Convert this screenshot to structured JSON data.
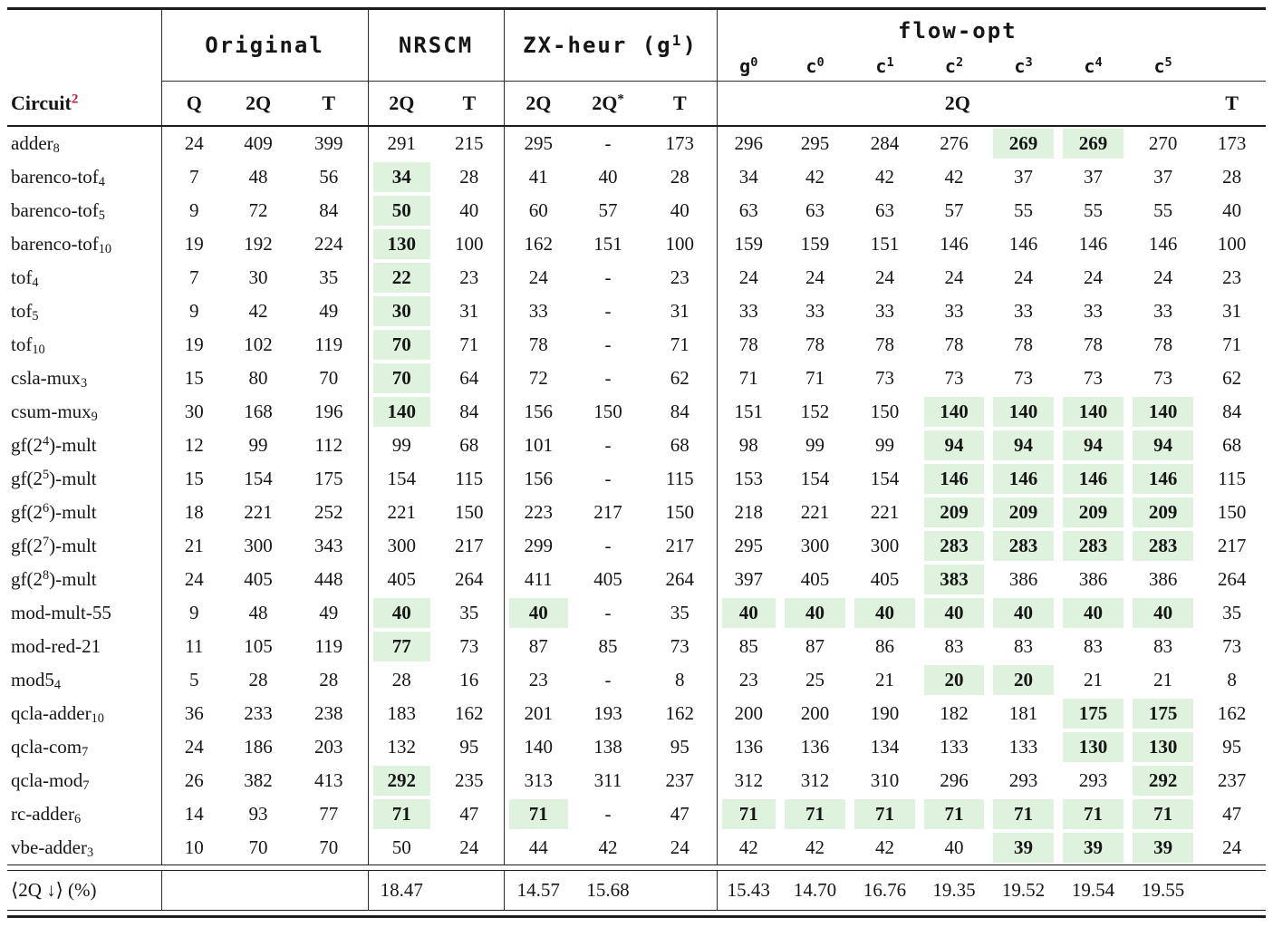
{
  "colors": {
    "highlight_green": "#def2dd",
    "footnote_red": "#c4134e"
  },
  "header": {
    "circuit_label": "Circuit",
    "circuit_footnote": "2",
    "groups": [
      {
        "label": "Original"
      },
      {
        "label": "NRSCM"
      },
      {
        "label": "ZX-heur (g^{1})"
      },
      {
        "label": "flow-opt",
        "subcols": [
          "g^{0}",
          "c^{0}",
          "c^{1}",
          "c^{2}",
          "c^{3}",
          "c^{4}",
          "c^{5}"
        ]
      }
    ],
    "columns": [
      "Q",
      "2Q",
      "T",
      "2Q",
      "T",
      "2Q",
      "2Q^{*}",
      "T"
    ],
    "flow_2q_label": "2Q",
    "flow_t_label": "T"
  },
  "rows": [
    {
      "name": "adder_{8}",
      "cells": [
        {
          "v": "24"
        },
        {
          "v": "409"
        },
        {
          "v": "399"
        },
        {
          "v": "291"
        },
        {
          "v": "215"
        },
        {
          "v": "295"
        },
        {
          "v": "-"
        },
        {
          "v": "173"
        },
        {
          "v": "296"
        },
        {
          "v": "295"
        },
        {
          "v": "284"
        },
        {
          "v": "276"
        },
        {
          "v": "269",
          "hl": true
        },
        {
          "v": "269",
          "hl": true
        },
        {
          "v": "270"
        },
        {
          "v": "173"
        }
      ]
    },
    {
      "name": "barenco-tof_{4}",
      "cells": [
        {
          "v": "7"
        },
        {
          "v": "48"
        },
        {
          "v": "56"
        },
        {
          "v": "34",
          "hl": true
        },
        {
          "v": "28"
        },
        {
          "v": "41"
        },
        {
          "v": "40"
        },
        {
          "v": "28"
        },
        {
          "v": "34"
        },
        {
          "v": "42"
        },
        {
          "v": "42"
        },
        {
          "v": "42"
        },
        {
          "v": "37"
        },
        {
          "v": "37"
        },
        {
          "v": "37"
        },
        {
          "v": "28"
        }
      ]
    },
    {
      "name": "barenco-tof_{5}",
      "cells": [
        {
          "v": "9"
        },
        {
          "v": "72"
        },
        {
          "v": "84"
        },
        {
          "v": "50",
          "hl": true
        },
        {
          "v": "40"
        },
        {
          "v": "60"
        },
        {
          "v": "57"
        },
        {
          "v": "40"
        },
        {
          "v": "63"
        },
        {
          "v": "63"
        },
        {
          "v": "63"
        },
        {
          "v": "57"
        },
        {
          "v": "55"
        },
        {
          "v": "55"
        },
        {
          "v": "55"
        },
        {
          "v": "40"
        }
      ]
    },
    {
      "name": "barenco-tof_{10}",
      "cells": [
        {
          "v": "19"
        },
        {
          "v": "192"
        },
        {
          "v": "224"
        },
        {
          "v": "130",
          "hl": true
        },
        {
          "v": "100"
        },
        {
          "v": "162"
        },
        {
          "v": "151"
        },
        {
          "v": "100"
        },
        {
          "v": "159"
        },
        {
          "v": "159"
        },
        {
          "v": "151"
        },
        {
          "v": "146"
        },
        {
          "v": "146"
        },
        {
          "v": "146"
        },
        {
          "v": "146"
        },
        {
          "v": "100"
        }
      ]
    },
    {
      "name": "tof_{4}",
      "cells": [
        {
          "v": "7"
        },
        {
          "v": "30"
        },
        {
          "v": "35"
        },
        {
          "v": "22",
          "hl": true
        },
        {
          "v": "23"
        },
        {
          "v": "24"
        },
        {
          "v": "-"
        },
        {
          "v": "23"
        },
        {
          "v": "24"
        },
        {
          "v": "24"
        },
        {
          "v": "24"
        },
        {
          "v": "24"
        },
        {
          "v": "24"
        },
        {
          "v": "24"
        },
        {
          "v": "24"
        },
        {
          "v": "23"
        }
      ]
    },
    {
      "name": "tof_{5}",
      "cells": [
        {
          "v": "9"
        },
        {
          "v": "42"
        },
        {
          "v": "49"
        },
        {
          "v": "30",
          "hl": true
        },
        {
          "v": "31"
        },
        {
          "v": "33"
        },
        {
          "v": "-"
        },
        {
          "v": "31"
        },
        {
          "v": "33"
        },
        {
          "v": "33"
        },
        {
          "v": "33"
        },
        {
          "v": "33"
        },
        {
          "v": "33"
        },
        {
          "v": "33"
        },
        {
          "v": "33"
        },
        {
          "v": "31"
        }
      ]
    },
    {
      "name": "tof_{10}",
      "cells": [
        {
          "v": "19"
        },
        {
          "v": "102"
        },
        {
          "v": "119"
        },
        {
          "v": "70",
          "hl": true
        },
        {
          "v": "71"
        },
        {
          "v": "78"
        },
        {
          "v": "-"
        },
        {
          "v": "71"
        },
        {
          "v": "78"
        },
        {
          "v": "78"
        },
        {
          "v": "78"
        },
        {
          "v": "78"
        },
        {
          "v": "78"
        },
        {
          "v": "78"
        },
        {
          "v": "78"
        },
        {
          "v": "71"
        }
      ]
    },
    {
      "name": "csla-mux_{3}",
      "cells": [
        {
          "v": "15"
        },
        {
          "v": "80"
        },
        {
          "v": "70"
        },
        {
          "v": "70",
          "hl": true
        },
        {
          "v": "64"
        },
        {
          "v": "72"
        },
        {
          "v": "-"
        },
        {
          "v": "62"
        },
        {
          "v": "71"
        },
        {
          "v": "71"
        },
        {
          "v": "73"
        },
        {
          "v": "73"
        },
        {
          "v": "73"
        },
        {
          "v": "73"
        },
        {
          "v": "73"
        },
        {
          "v": "62"
        }
      ]
    },
    {
      "name": "csum-mux_{9}",
      "cells": [
        {
          "v": "30"
        },
        {
          "v": "168"
        },
        {
          "v": "196"
        },
        {
          "v": "140",
          "hl": true
        },
        {
          "v": "84"
        },
        {
          "v": "156"
        },
        {
          "v": "150"
        },
        {
          "v": "84"
        },
        {
          "v": "151"
        },
        {
          "v": "152"
        },
        {
          "v": "150"
        },
        {
          "v": "140",
          "hl": true
        },
        {
          "v": "140",
          "hl": true
        },
        {
          "v": "140",
          "hl": true
        },
        {
          "v": "140",
          "hl": true
        },
        {
          "v": "84"
        }
      ]
    },
    {
      "name": "gf(2^{4})-mult",
      "cells": [
        {
          "v": "12"
        },
        {
          "v": "99"
        },
        {
          "v": "112"
        },
        {
          "v": "99"
        },
        {
          "v": "68"
        },
        {
          "v": "101"
        },
        {
          "v": "-"
        },
        {
          "v": "68"
        },
        {
          "v": "98"
        },
        {
          "v": "99"
        },
        {
          "v": "99"
        },
        {
          "v": "94",
          "hl": true
        },
        {
          "v": "94",
          "hl": true
        },
        {
          "v": "94",
          "hl": true
        },
        {
          "v": "94",
          "hl": true
        },
        {
          "v": "68"
        }
      ]
    },
    {
      "name": "gf(2^{5})-mult",
      "cells": [
        {
          "v": "15"
        },
        {
          "v": "154"
        },
        {
          "v": "175"
        },
        {
          "v": "154"
        },
        {
          "v": "115"
        },
        {
          "v": "156"
        },
        {
          "v": "-"
        },
        {
          "v": "115"
        },
        {
          "v": "153"
        },
        {
          "v": "154"
        },
        {
          "v": "154"
        },
        {
          "v": "146",
          "hl": true
        },
        {
          "v": "146",
          "hl": true
        },
        {
          "v": "146",
          "hl": true
        },
        {
          "v": "146",
          "hl": true
        },
        {
          "v": "115"
        }
      ]
    },
    {
      "name": "gf(2^{6})-mult",
      "cells": [
        {
          "v": "18"
        },
        {
          "v": "221"
        },
        {
          "v": "252"
        },
        {
          "v": "221"
        },
        {
          "v": "150"
        },
        {
          "v": "223"
        },
        {
          "v": "217"
        },
        {
          "v": "150"
        },
        {
          "v": "218"
        },
        {
          "v": "221"
        },
        {
          "v": "221"
        },
        {
          "v": "209",
          "hl": true
        },
        {
          "v": "209",
          "hl": true
        },
        {
          "v": "209",
          "hl": true
        },
        {
          "v": "209",
          "hl": true
        },
        {
          "v": "150"
        }
      ]
    },
    {
      "name": "gf(2^{7})-mult",
      "cells": [
        {
          "v": "21"
        },
        {
          "v": "300"
        },
        {
          "v": "343"
        },
        {
          "v": "300"
        },
        {
          "v": "217"
        },
        {
          "v": "299"
        },
        {
          "v": "-"
        },
        {
          "v": "217"
        },
        {
          "v": "295"
        },
        {
          "v": "300"
        },
        {
          "v": "300"
        },
        {
          "v": "283",
          "hl": true
        },
        {
          "v": "283",
          "hl": true
        },
        {
          "v": "283",
          "hl": true
        },
        {
          "v": "283",
          "hl": true
        },
        {
          "v": "217"
        }
      ]
    },
    {
      "name": "gf(2^{8})-mult",
      "cells": [
        {
          "v": "24"
        },
        {
          "v": "405"
        },
        {
          "v": "448"
        },
        {
          "v": "405"
        },
        {
          "v": "264"
        },
        {
          "v": "411"
        },
        {
          "v": "405"
        },
        {
          "v": "264"
        },
        {
          "v": "397"
        },
        {
          "v": "405"
        },
        {
          "v": "405"
        },
        {
          "v": "383",
          "hl": true
        },
        {
          "v": "386"
        },
        {
          "v": "386"
        },
        {
          "v": "386"
        },
        {
          "v": "264"
        }
      ]
    },
    {
      "name": "mod-mult-55",
      "cells": [
        {
          "v": "9"
        },
        {
          "v": "48"
        },
        {
          "v": "49"
        },
        {
          "v": "40",
          "hl": true
        },
        {
          "v": "35"
        },
        {
          "v": "40",
          "hl": true
        },
        {
          "v": "-"
        },
        {
          "v": "35"
        },
        {
          "v": "40",
          "hl": true
        },
        {
          "v": "40",
          "hl": true
        },
        {
          "v": "40",
          "hl": true
        },
        {
          "v": "40",
          "hl": true
        },
        {
          "v": "40",
          "hl": true
        },
        {
          "v": "40",
          "hl": true
        },
        {
          "v": "40",
          "hl": true
        },
        {
          "v": "35"
        }
      ]
    },
    {
      "name": "mod-red-21",
      "cells": [
        {
          "v": "11"
        },
        {
          "v": "105"
        },
        {
          "v": "119"
        },
        {
          "v": "77",
          "hl": true
        },
        {
          "v": "73"
        },
        {
          "v": "87"
        },
        {
          "v": "85"
        },
        {
          "v": "73"
        },
        {
          "v": "85"
        },
        {
          "v": "87"
        },
        {
          "v": "86"
        },
        {
          "v": "83"
        },
        {
          "v": "83"
        },
        {
          "v": "83"
        },
        {
          "v": "83"
        },
        {
          "v": "73"
        }
      ]
    },
    {
      "name": "mod5_{4}",
      "cells": [
        {
          "v": "5"
        },
        {
          "v": "28"
        },
        {
          "v": "28"
        },
        {
          "v": "28"
        },
        {
          "v": "16"
        },
        {
          "v": "23"
        },
        {
          "v": "-"
        },
        {
          "v": "8"
        },
        {
          "v": "23"
        },
        {
          "v": "25"
        },
        {
          "v": "21"
        },
        {
          "v": "20",
          "hl": true
        },
        {
          "v": "20",
          "hl": true
        },
        {
          "v": "21"
        },
        {
          "v": "21"
        },
        {
          "v": "8"
        }
      ]
    },
    {
      "name": "qcla-adder_{10}",
      "cells": [
        {
          "v": "36"
        },
        {
          "v": "233"
        },
        {
          "v": "238"
        },
        {
          "v": "183"
        },
        {
          "v": "162"
        },
        {
          "v": "201"
        },
        {
          "v": "193"
        },
        {
          "v": "162"
        },
        {
          "v": "200"
        },
        {
          "v": "200"
        },
        {
          "v": "190"
        },
        {
          "v": "182"
        },
        {
          "v": "181"
        },
        {
          "v": "175",
          "hl": true
        },
        {
          "v": "175",
          "hl": true
        },
        {
          "v": "162"
        }
      ]
    },
    {
      "name": "qcla-com_{7}",
      "cells": [
        {
          "v": "24"
        },
        {
          "v": "186"
        },
        {
          "v": "203"
        },
        {
          "v": "132"
        },
        {
          "v": "95"
        },
        {
          "v": "140"
        },
        {
          "v": "138"
        },
        {
          "v": "95"
        },
        {
          "v": "136"
        },
        {
          "v": "136"
        },
        {
          "v": "134"
        },
        {
          "v": "133"
        },
        {
          "v": "133"
        },
        {
          "v": "130",
          "hl": true
        },
        {
          "v": "130",
          "hl": true
        },
        {
          "v": "95"
        }
      ]
    },
    {
      "name": "qcla-mod_{7}",
      "cells": [
        {
          "v": "26"
        },
        {
          "v": "382"
        },
        {
          "v": "413"
        },
        {
          "v": "292",
          "hl": true
        },
        {
          "v": "235"
        },
        {
          "v": "313"
        },
        {
          "v": "311"
        },
        {
          "v": "237"
        },
        {
          "v": "312"
        },
        {
          "v": "312"
        },
        {
          "v": "310"
        },
        {
          "v": "296"
        },
        {
          "v": "293"
        },
        {
          "v": "293"
        },
        {
          "v": "292",
          "hl": true
        },
        {
          "v": "237"
        }
      ]
    },
    {
      "name": "rc-adder_{6}",
      "cells": [
        {
          "v": "14"
        },
        {
          "v": "93"
        },
        {
          "v": "77"
        },
        {
          "v": "71",
          "hl": true
        },
        {
          "v": "47"
        },
        {
          "v": "71",
          "hl": true
        },
        {
          "v": "-"
        },
        {
          "v": "47"
        },
        {
          "v": "71",
          "hl": true
        },
        {
          "v": "71",
          "hl": true
        },
        {
          "v": "71",
          "hl": true
        },
        {
          "v": "71",
          "hl": true
        },
        {
          "v": "71",
          "hl": true
        },
        {
          "v": "71",
          "hl": true
        },
        {
          "v": "71",
          "hl": true
        },
        {
          "v": "47"
        }
      ]
    },
    {
      "name": "vbe-adder_{3}",
      "cells": [
        {
          "v": "10"
        },
        {
          "v": "70"
        },
        {
          "v": "70"
        },
        {
          "v": "50"
        },
        {
          "v": "24"
        },
        {
          "v": "44"
        },
        {
          "v": "42"
        },
        {
          "v": "24"
        },
        {
          "v": "42"
        },
        {
          "v": "42"
        },
        {
          "v": "42"
        },
        {
          "v": "40"
        },
        {
          "v": "39",
          "hl": true
        },
        {
          "v": "39",
          "hl": true
        },
        {
          "v": "39",
          "hl": true
        },
        {
          "v": "24"
        }
      ]
    }
  ],
  "summary": {
    "label": "⟨2Q ↓⟩ (%)",
    "values": [
      "",
      "",
      "",
      "18.47",
      "",
      "14.57",
      "15.68",
      "",
      "15.43",
      "14.70",
      "16.76",
      "19.35",
      "19.52",
      "19.54",
      "19.55",
      ""
    ]
  }
}
